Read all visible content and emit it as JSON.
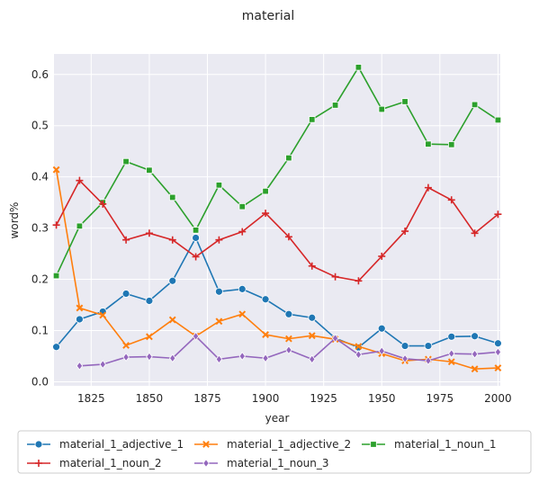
{
  "chart_data": {
    "type": "line",
    "title": "material",
    "xlabel": "year",
    "ylabel": "word%",
    "xlim": [
      1809,
      2001
    ],
    "ylim": [
      -0.008,
      0.64
    ],
    "xticks": [
      1825,
      1850,
      1875,
      1900,
      1925,
      1950,
      1975,
      2000
    ],
    "yticks": [
      0.0,
      0.1,
      0.2,
      0.3,
      0.4,
      0.5,
      0.6
    ],
    "grid": true,
    "legend_position": "bottom",
    "series": [
      {
        "name": "material_1_adjective_1",
        "color": "#1f77b4",
        "marker": "circle",
        "x": [
          1810,
          1820,
          1830,
          1840,
          1850,
          1860,
          1870,
          1880,
          1890,
          1900,
          1910,
          1920,
          1930,
          1940,
          1950,
          1960,
          1970,
          1980,
          1990,
          2000
        ],
        "y": [
          0.068,
          0.122,
          0.137,
          0.172,
          0.158,
          0.197,
          0.281,
          0.176,
          0.181,
          0.161,
          0.132,
          0.125,
          0.085,
          0.067,
          0.104,
          0.07,
          0.07,
          0.088,
          0.089,
          0.075
        ]
      },
      {
        "name": "material_1_adjective_2",
        "color": "#ff7f0e",
        "marker": "x",
        "x": [
          1810,
          1820,
          1830,
          1840,
          1850,
          1860,
          1870,
          1880,
          1890,
          1900,
          1910,
          1920,
          1930,
          1940,
          1950,
          1960,
          1970,
          1980,
          1990,
          2000
        ],
        "y": [
          0.414,
          0.144,
          0.13,
          0.071,
          0.088,
          0.121,
          0.089,
          0.118,
          0.132,
          0.092,
          0.084,
          0.09,
          0.083,
          0.069,
          0.055,
          0.041,
          0.044,
          0.039,
          0.025,
          0.027
        ]
      },
      {
        "name": "material_1_noun_1",
        "color": "#2ca02c",
        "marker": "square",
        "x": [
          1810,
          1820,
          1830,
          1840,
          1850,
          1860,
          1870,
          1880,
          1890,
          1900,
          1910,
          1920,
          1930,
          1940,
          1950,
          1960,
          1970,
          1980,
          1990,
          2000
        ],
        "y": [
          0.207,
          0.304,
          0.35,
          0.43,
          0.413,
          0.36,
          0.296,
          0.384,
          0.342,
          0.372,
          0.437,
          0.512,
          0.54,
          0.614,
          0.532,
          0.547,
          0.464,
          0.463,
          0.541,
          0.511
        ]
      },
      {
        "name": "material_1_noun_2",
        "color": "#d62728",
        "marker": "plus",
        "x": [
          1810,
          1820,
          1830,
          1840,
          1850,
          1860,
          1870,
          1880,
          1890,
          1900,
          1910,
          1920,
          1930,
          1940,
          1950,
          1960,
          1970,
          1980,
          1990,
          2000
        ],
        "y": [
          0.306,
          0.393,
          0.347,
          0.277,
          0.29,
          0.277,
          0.244,
          0.277,
          0.293,
          0.329,
          0.283,
          0.226,
          0.205,
          0.197,
          0.245,
          0.294,
          0.379,
          0.355,
          0.29,
          0.327
        ]
      },
      {
        "name": "material_1_noun_3",
        "color": "#9467bd",
        "marker": "diamond",
        "x": [
          1820,
          1830,
          1840,
          1850,
          1860,
          1870,
          1880,
          1890,
          1900,
          1910,
          1920,
          1930,
          1940,
          1950,
          1960,
          1970,
          1980,
          1990,
          2000
        ],
        "y": [
          0.031,
          0.034,
          0.048,
          0.049,
          0.046,
          0.089,
          0.044,
          0.05,
          0.046,
          0.062,
          0.044,
          0.085,
          0.053,
          0.06,
          0.045,
          0.041,
          0.055,
          0.054,
          0.058
        ]
      }
    ]
  }
}
